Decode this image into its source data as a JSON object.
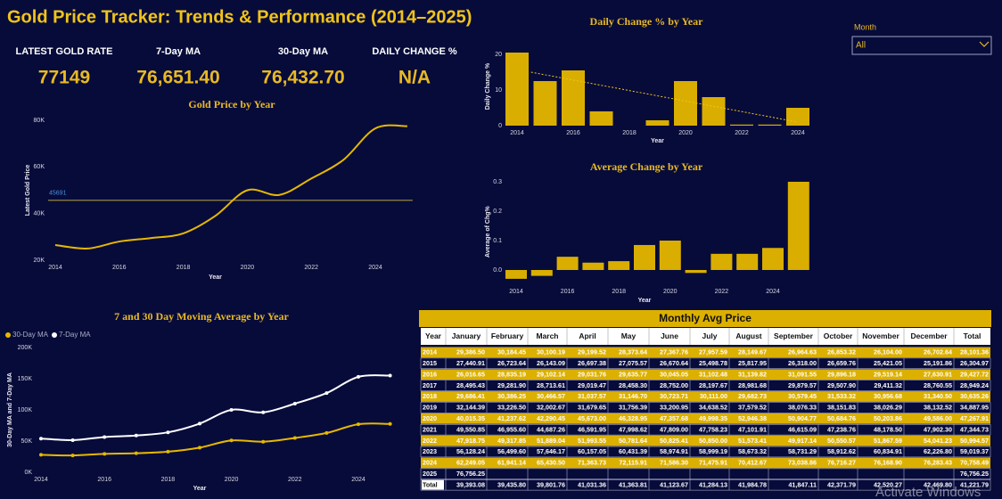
{
  "header": {
    "title": "Gold Price Tracker: Trends & Performance (2014–2025)"
  },
  "kpis": [
    {
      "label": "LATEST GOLD RATE",
      "value": "77149"
    },
    {
      "label": "7-Day MA",
      "value": "76,651.40"
    },
    {
      "label": "30-Day MA",
      "value": "76,432.70"
    },
    {
      "label": "DAILY CHANGE %",
      "value": "N/A"
    }
  ],
  "slicer": {
    "label": "Month",
    "value": "All"
  },
  "chart_data": [
    {
      "type": "line",
      "title": "Gold Price by Year",
      "xlabel": "Year",
      "ylabel": "Latest Gold Price",
      "x": [
        2014,
        2015,
        2016,
        2017,
        2018,
        2019,
        2020,
        2021,
        2022,
        2023,
        2024,
        2025
      ],
      "values": [
        26500,
        25000,
        28000,
        29500,
        31500,
        39000,
        50000,
        48000,
        55000,
        63000,
        76500,
        77500
      ],
      "color": "#e6b800",
      "reference_line": 45691,
      "reference_color": "#7d7240",
      "reference_label_color": "#4a8fe0",
      "xlim": [
        2014,
        2025
      ],
      "xticks": [
        2014,
        2016,
        2018,
        2020,
        2022,
        2024
      ],
      "ylim": [
        20000,
        80000
      ],
      "yticks": [
        {
          "value": 20000,
          "label": "20K"
        },
        {
          "value": 40000,
          "label": "40K"
        },
        {
          "value": 60000,
          "label": "60K"
        },
        {
          "value": 80000,
          "label": "80K"
        }
      ],
      "grid": false
    },
    {
      "type": "bar",
      "title": "Daily Change % by Year",
      "xlabel": "Year",
      "ylabel": "Daily Change %",
      "x": [
        2014,
        2015,
        2016,
        2017,
        2018,
        2019,
        2020,
        2021,
        2022,
        2023,
        2024
      ],
      "values": [
        20.5,
        12.5,
        15.5,
        4,
        0,
        1.5,
        12.5,
        8,
        0.3,
        0.3,
        5
      ],
      "color": "#d9ae00",
      "trend": {
        "x": [
          2014.5,
          2024
        ],
        "values": [
          15,
          1
        ],
        "color": "#f0c419"
      },
      "xticks": [
        2014,
        2016,
        2018,
        2020,
        2022,
        2024
      ],
      "ylim": [
        0,
        22
      ],
      "yticks": [
        0,
        10,
        20
      ],
      "grid": false
    },
    {
      "type": "bar",
      "title": "Average Change by Year",
      "xlabel": "Year",
      "ylabel": "Average of Chg%",
      "x": [
        2014,
        2015,
        2016,
        2017,
        2018,
        2019,
        2020,
        2021,
        2022,
        2023,
        2024,
        2025
      ],
      "values": [
        -0.03,
        -0.02,
        0.045,
        0.025,
        0.03,
        0.085,
        0.1,
        -0.01,
        0.055,
        0.055,
        0.075,
        0.3
      ],
      "color": "#d9ae00",
      "xticks": [
        2014,
        2016,
        2018,
        2020,
        2022,
        2024
      ],
      "ylim": [
        -0.04,
        0.3
      ],
      "yticks": [
        {
          "value": 0,
          "label": "0.0"
        },
        0.1,
        0.2,
        0.3
      ],
      "grid": false
    },
    {
      "type": "line",
      "title": "7 and 30 Day Moving Average by Year",
      "xlabel": "Year",
      "ylabel": "30-Day MA and 7-Day MA",
      "x": [
        2014,
        2015,
        2016,
        2017,
        2018,
        2019,
        2020,
        2021,
        2022,
        2023,
        2024,
        2025
      ],
      "series": [
        {
          "name": "30-Day MA",
          "color": "#e6b800",
          "values": [
            28000,
            27000,
            29500,
            30500,
            33000,
            39500,
            51000,
            49000,
            55000,
            63000,
            77000,
            77500
          ]
        },
        {
          "name": "7-Day MA",
          "color": "#ffffff",
          "values": [
            54000,
            51500,
            56500,
            59000,
            64000,
            78000,
            100000,
            96000,
            110000,
            127000,
            153000,
            155000
          ]
        }
      ],
      "xlim": [
        2014,
        2025
      ],
      "xticks": [
        2014,
        2016,
        2018,
        2020,
        2022,
        2024
      ],
      "ylim": [
        0,
        200000
      ],
      "yticks": [
        {
          "value": 0,
          "label": "0K"
        },
        {
          "value": 50000,
          "label": "50K"
        },
        {
          "value": 100000,
          "label": "100K"
        },
        {
          "value": 150000,
          "label": "150K"
        },
        {
          "value": 200000,
          "label": "200K"
        }
      ],
      "legend": "top-left",
      "grid": false
    }
  ],
  "table": {
    "title": "Monthly Avg Price",
    "columns": [
      "Year",
      "January",
      "February",
      "March",
      "April",
      "May",
      "June",
      "July",
      "August",
      "September",
      "October",
      "November",
      "December",
      "Total"
    ],
    "rows": [
      [
        "2014",
        "29,386.50",
        "30,184.45",
        "30,100.19",
        "29,199.52",
        "28,373.64",
        "27,367.76",
        "27,957.59",
        "28,149.67",
        "26,964.63",
        "26,853.32",
        "26,104.00",
        "26,702.64",
        "28,101.36"
      ],
      [
        "2015",
        "27,440.91",
        "26,723.64",
        "26,143.09",
        "26,697.38",
        "27,075.57",
        "26,670.64",
        "25,498.78",
        "25,817.95",
        "26,318.00",
        "26,659.76",
        "25,421.05",
        "25,191.86",
        "26,304.97"
      ],
      [
        "2016",
        "26,016.65",
        "28,835.19",
        "29,102.14",
        "29,031.76",
        "29,635.77",
        "30,045.05",
        "31,102.48",
        "31,139.82",
        "31,091.55",
        "29,896.18",
        "29,519.14",
        "27,630.91",
        "29,427.72"
      ],
      [
        "2017",
        "28,495.43",
        "29,281.90",
        "28,713.61",
        "29,019.47",
        "28,458.30",
        "28,752.00",
        "28,197.67",
        "28,981.68",
        "29,879.57",
        "29,507.90",
        "29,411.32",
        "28,760.55",
        "28,949.24"
      ],
      [
        "2018",
        "29,686.41",
        "30,386.25",
        "30,466.57",
        "31,037.57",
        "31,146.70",
        "30,723.71",
        "30,111.00",
        "29,682.73",
        "30,579.45",
        "31,533.32",
        "30,956.68",
        "31,340.50",
        "30,635.26"
      ],
      [
        "2019",
        "32,144.39",
        "33,226.50",
        "32,002.67",
        "31,679.65",
        "31,756.39",
        "33,200.95",
        "34,638.52",
        "37,579.52",
        "38,076.33",
        "38,151.83",
        "38,026.29",
        "38,132.52",
        "34,887.95"
      ],
      [
        "2020",
        "40,015.35",
        "41,237.62",
        "42,290.45",
        "45,673.00",
        "46,328.95",
        "47,357.68",
        "49,998.35",
        "52,946.38",
        "50,904.77",
        "50,684.76",
        "50,203.86",
        "49,586.00",
        "47,267.91"
      ],
      [
        "2021",
        "49,550.85",
        "46,955.60",
        "44,687.26",
        "46,591.95",
        "47,998.62",
        "47,809.00",
        "47,758.23",
        "47,101.91",
        "46,615.09",
        "47,238.76",
        "48,178.50",
        "47,902.30",
        "47,344.73"
      ],
      [
        "2022",
        "47,918.75",
        "49,317.85",
        "51,889.04",
        "51,993.55",
        "50,781.64",
        "50,825.41",
        "50,850.00",
        "51,573.41",
        "49,917.14",
        "50,550.57",
        "51,867.59",
        "54,041.23",
        "50,994.57"
      ],
      [
        "2023",
        "56,128.24",
        "56,499.60",
        "57,646.17",
        "60,157.05",
        "60,431.39",
        "58,974.91",
        "58,999.19",
        "58,673.32",
        "58,731.29",
        "58,912.62",
        "60,834.91",
        "62,226.80",
        "59,019.37"
      ],
      [
        "2024",
        "62,249.05",
        "61,941.14",
        "65,430.50",
        "71,363.73",
        "72,115.91",
        "71,586.30",
        "71,475.91",
        "70,412.67",
        "73,038.86",
        "76,716.27",
        "76,168.90",
        "76,283.43",
        "70,758.49"
      ],
      [
        "2025",
        "76,756.25",
        null,
        null,
        null,
        null,
        null,
        null,
        null,
        null,
        null,
        null,
        null,
        "76,756.25"
      ],
      [
        "Total",
        "39,393.08",
        "39,435.80",
        "39,801.76",
        "41,031.36",
        "41,363.81",
        "41,123.67",
        "41,284.13",
        "41,984.78",
        "41,847.11",
        "42,371.79",
        "42,520.27",
        "42,469.80",
        "41,221.79"
      ]
    ]
  },
  "watermark": "Activate Windows"
}
